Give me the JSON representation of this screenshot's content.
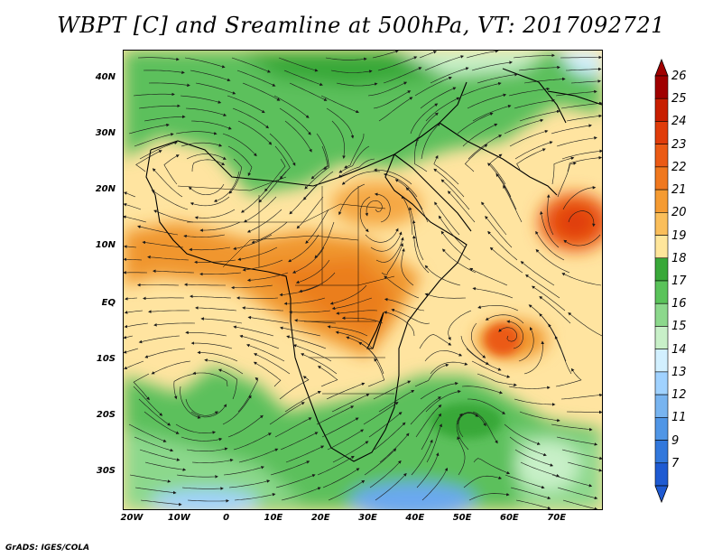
{
  "title": "WBPT [C] and Sreamline at 500hPa, VT: 2017092721",
  "credit": "GrADS: IGES/COLA",
  "lat_labels": [
    "40N",
    "30N",
    "20N",
    "10N",
    "EQ",
    "10S",
    "20S",
    "30S"
  ],
  "lon_labels": [
    "20W",
    "10W",
    "0",
    "10E",
    "20E",
    "30E",
    "40E",
    "50E",
    "60E",
    "70E"
  ],
  "colorbar": {
    "labels": [
      "26",
      "25",
      "24",
      "23",
      "22",
      "21",
      "20",
      "19",
      "18",
      "17",
      "16",
      "15",
      "14",
      "13",
      "12",
      "11",
      "9",
      "7"
    ],
    "colors": [
      "#a00000",
      "#c81e00",
      "#e03c0a",
      "#eb5a14",
      "#f0781e",
      "#f59b32",
      "#fabe5a",
      "#ffe69b",
      "#39a839",
      "#5ac35a",
      "#8cd88c",
      "#c8f0c8",
      "#d2f0ff",
      "#a0d2ff",
      "#78b4f0",
      "#5096e6",
      "#3278dc",
      "#1e5ad2"
    ]
  },
  "map": {
    "region": "Africa and Arabian Sea",
    "variable": "WBPT",
    "units": "C",
    "level": "500hPa",
    "valid_time": "2017092721",
    "colors": {
      "tropical_warm": "#f0962d",
      "subtropical_warm": "#ffe08f",
      "mid_green": "#5cc05c",
      "cool_blue": "#6aa8f0",
      "streamline": "#1a1a1a"
    }
  }
}
